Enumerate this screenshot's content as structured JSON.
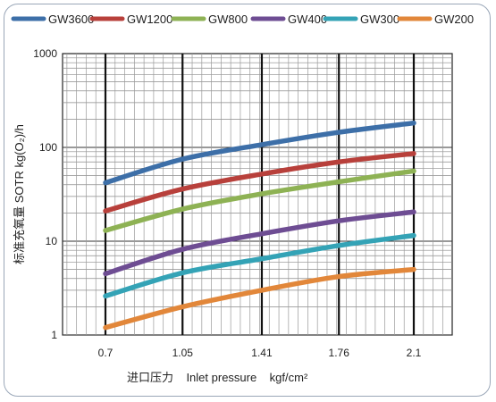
{
  "chart_data": {
    "type": "line",
    "ylabel": "标准充氧量 SOTR  kg(O₂)/h",
    "xlabel": "进口压力    Inlet pressure    kgf/cm²",
    "y_scale": "log",
    "ylim": [
      1,
      1000
    ],
    "x_ticks": [
      "0.7",
      "1.05",
      "1.41",
      "1.76",
      "2.1"
    ],
    "y_ticks": [
      "1",
      "10",
      "100",
      "1000"
    ],
    "legend_position": "top",
    "grid": true,
    "x": [
      0.7,
      1.05,
      1.41,
      1.76,
      2.1
    ],
    "series": [
      {
        "name": "GW3600",
        "color": "#3d6fa8",
        "values": [
          42,
          75,
          107,
          145,
          182
        ]
      },
      {
        "name": "GW1200",
        "color": "#b8403b",
        "values": [
          21,
          36,
          52,
          70,
          86
        ]
      },
      {
        "name": "GW800",
        "color": "#8eb254",
        "values": [
          13,
          22,
          32,
          43,
          56
        ]
      },
      {
        "name": "GW400",
        "color": "#6e4d93",
        "values": [
          4.5,
          8.2,
          12,
          16.5,
          20.5
        ]
      },
      {
        "name": "GW300",
        "color": "#34a3b6",
        "values": [
          2.6,
          4.6,
          6.5,
          9,
          11.5
        ]
      },
      {
        "name": "GW200",
        "color": "#e2873a",
        "values": [
          1.2,
          2.0,
          3.0,
          4.2,
          5.0
        ]
      }
    ]
  }
}
